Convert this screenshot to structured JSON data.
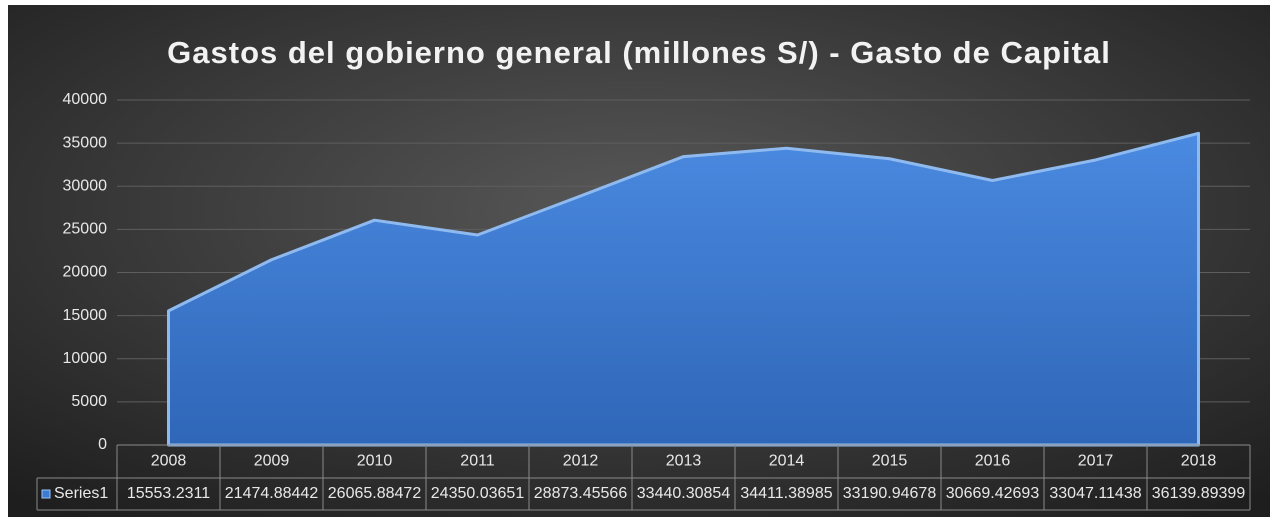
{
  "chart_data": {
    "type": "area",
    "title": "Gastos del gobierno general (millones S/) - Gasto de Capital",
    "categories": [
      "2008",
      "2009",
      "2010",
      "2011",
      "2012",
      "2013",
      "2014",
      "2015",
      "2016",
      "2017",
      "2018"
    ],
    "series": [
      {
        "name": "Series1",
        "color": "#3b7bd4",
        "values": [
          15553.2311,
          21474.88442,
          26065.88472,
          24350.03651,
          28873.45566,
          33440.30854,
          34411.38985,
          33190.94678,
          30669.42693,
          33047.11438,
          36139.89399
        ]
      }
    ],
    "ylim": [
      0,
      40000
    ],
    "yticks": [
      0,
      5000,
      10000,
      15000,
      20000,
      25000,
      30000,
      35000,
      40000
    ],
    "grid": true,
    "data_table": true
  }
}
